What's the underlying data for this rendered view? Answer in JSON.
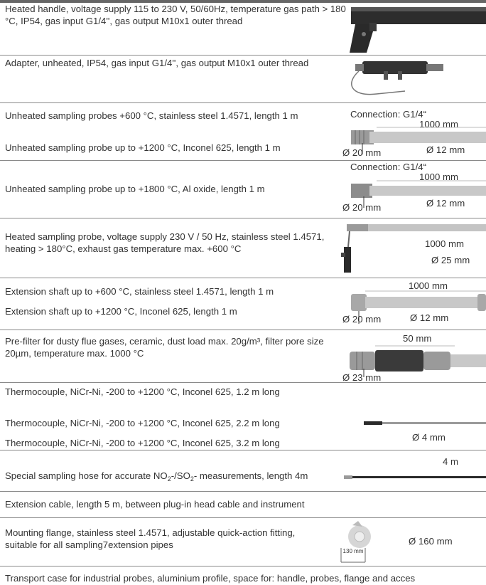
{
  "rows": [
    {
      "text": "Heated handle, voltage supply 115 to 230 V, 50/60Hz, temperature gas path > 180 °C, IP54, gas input G1/4'', gas output M10x1 outer thread"
    },
    {
      "text": "Adapter, unheated, IP54, gas input G1/4'', gas output M10x1 outer thread"
    },
    {
      "text1": "Unheated sampling probes +600 °C, stainless steel 1.4571, length 1 m",
      "text2": "Unheated sampling probe up to +1200 °C, Inconel 625, length 1 m",
      "labels": {
        "connection": "Connection: G1/4“",
        "length": "1000 mm",
        "dia_outer": "Ø 20 mm",
        "dia_inner": "Ø 12 mm"
      }
    },
    {
      "text": "Unheated sampling probe up to +1800 °C, Al oxide, length 1 m",
      "labels": {
        "connection": "Connection: G1/4“",
        "length": "1000 mm",
        "dia_outer": "Ø 20 mm",
        "dia_inner": "Ø 12 mm"
      }
    },
    {
      "text": "Heated sampling probe, voltage supply 230 V / 50 Hz, stainless steel 1.4571, heating > 180°C, exhaust gas temperature max. +600 °C",
      "labels": {
        "length": "1000 mm",
        "dia": "Ø 25 mm"
      }
    },
    {
      "text1": "Extension shaft up to +600 °C, stainless steel 1.4571, length 1 m",
      "text2": "Extension shaft up to +1200 °C, Inconel 625, length 1 m",
      "labels": {
        "length": "1000 mm",
        "dia_outer": "Ø 20 mm",
        "dia_inner": "Ø 12 mm"
      }
    },
    {
      "text": "Pre-filter for dusty flue gases, ceramic, dust load max. 20g/m³, filter pore size 20µm, temperature max. 1000 °C",
      "labels": {
        "length": "50 mm",
        "dia": "Ø 23 mm"
      }
    },
    {
      "text1": "Thermocouple, NiCr-Ni, -200 to +1200 °C, Inconel 625, 1.2 m long",
      "text2": "Thermocouple, NiCr-Ni, -200 to +1200 °C, Inconel 625, 2.2 m long",
      "text3": "Thermocouple, NiCr-Ni, -200 to +1200 °C, Inconel 625, 3.2 m long",
      "labels": {
        "dia": "Ø 4 mm"
      }
    },
    {
      "text_pre": "Special sampling hose for accurate NO",
      "sub1": "2",
      "text_mid": "-/SO",
      "sub2": "2",
      "text_post": "- measurements, length 4m",
      "labels": {
        "length": "4 m"
      }
    },
    {
      "text": "Extension cable, length 5 m, between plug-in head cable and instrument"
    },
    {
      "text": "Mounting flange, stainless steel 1.4571, adjustable quick-action fitting, suitable for all sampling7extension pipes",
      "labels": {
        "inner": "130 mm",
        "dia": "Ø 160 mm"
      }
    },
    {
      "text": "Transport case for industrial probes, aluminium profile, space for: handle, probes, flange and acces"
    }
  ]
}
